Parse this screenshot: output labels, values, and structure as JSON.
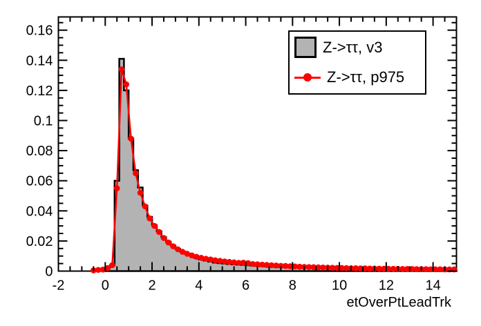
{
  "figure": {
    "background_color": "#ffffff",
    "axis_color": "#000000",
    "tick_label_color": "#000000"
  },
  "legend": {
    "position": "top-right",
    "border_color": "#000000",
    "background_color": "#ffffff",
    "entries": [
      {
        "label": "Z->ττ, v3",
        "swatch": "gray-filled-box",
        "fill": "#b3b3b3",
        "border": "#000000"
      },
      {
        "label": "Z->ττ, p975",
        "swatch": "red-line-circle-marker",
        "color": "#ff0000"
      }
    ]
  },
  "chart_data": {
    "type": "histogram",
    "title": "",
    "xlabel": "etOverPtLeadTrk",
    "ylabel": "",
    "xlim": [
      -2,
      15
    ],
    "ylim": [
      0,
      0.1688
    ],
    "grid": false,
    "x_major_ticks": [
      -2,
      0,
      2,
      4,
      6,
      8,
      10,
      12,
      14
    ],
    "x_tick_labels": [
      "-2",
      "0",
      "2",
      "4",
      "6",
      "8",
      "10",
      "12",
      "14"
    ],
    "x_minor_step": 0.5,
    "y_major_ticks": [
      0,
      0.02,
      0.04,
      0.06,
      0.08,
      0.1,
      0.12,
      0.14,
      0.16
    ],
    "y_tick_labels": [
      "0",
      "0.02",
      "0.04",
      "0.06",
      "0.08",
      "0.1",
      "0.12",
      "0.14",
      "0.16"
    ],
    "y_minor_step": 0.005,
    "bin_width": 0.2,
    "series": [
      {
        "name": "Z->ττ, v3",
        "style": "filled-step-histogram",
        "line_color": "#000000",
        "fill_color": "#b3b3b3",
        "bin_centers": [
          0.1,
          0.3,
          0.5,
          0.7,
          0.9,
          1.1,
          1.3,
          1.5,
          1.7,
          1.9,
          2.1,
          2.3,
          2.5,
          2.7,
          2.9,
          3.1,
          3.3,
          3.5,
          3.7,
          3.9,
          4.1,
          4.3,
          4.5,
          4.7,
          4.9,
          5.1,
          5.3,
          5.5,
          5.7,
          5.9,
          6.1,
          6.3,
          6.5,
          6.7,
          6.9,
          7.1,
          7.3,
          7.5,
          7.7,
          7.9,
          8.1,
          8.3,
          8.5,
          8.7,
          8.9,
          9.1,
          9.3,
          9.5,
          9.7,
          9.9,
          10.1,
          10.3,
          10.5,
          10.7,
          10.9,
          11.1,
          11.3,
          11.5,
          11.7,
          11.9,
          12.1,
          12.3,
          12.5,
          12.7,
          12.9,
          13.1,
          13.3,
          13.5,
          13.7,
          13.9,
          14.1,
          14.3,
          14.5,
          14.7,
          14.9
        ],
        "values": [
          0.002,
          0.004,
          0.06,
          0.141,
          0.12,
          0.088,
          0.067,
          0.0555,
          0.0435,
          0.036,
          0.0305,
          0.0265,
          0.0225,
          0.0195,
          0.017,
          0.0148,
          0.013,
          0.0116,
          0.0105,
          0.0088,
          0.0078,
          0.007,
          0.0063,
          0.0056,
          0.0053,
          0.005,
          0.0047,
          0.0045,
          0.0043,
          0.0041,
          0.0039,
          0.0037,
          0.0035,
          0.0033,
          0.0031,
          0.0029,
          0.0028,
          0.0027,
          0.0026,
          0.0025,
          0.0024,
          0.0023,
          0.0022,
          0.0021,
          0.002,
          0.002,
          0.0019,
          0.0018,
          0.0018,
          0.0017,
          0.0016,
          0.0016,
          0.0015,
          0.0015,
          0.0014,
          0.0014,
          0.0013,
          0.0013,
          0.0012,
          0.0012,
          0.0012,
          0.0011,
          0.0011,
          0.0011,
          0.001,
          0.001,
          0.001,
          0.0009,
          0.0009,
          0.0009,
          0.0008,
          0.0008,
          0.0008,
          0.0008,
          0.0007
        ]
      },
      {
        "name": "Z->ττ, p975",
        "style": "line-with-circle-markers",
        "color": "#ff0000",
        "marker": "filled-circle",
        "bin_centers": [
          -0.5,
          -0.3,
          -0.1,
          0.1,
          0.3,
          0.5,
          0.7,
          0.9,
          1.1,
          1.3,
          1.5,
          1.7,
          1.9,
          2.1,
          2.3,
          2.5,
          2.7,
          2.9,
          3.1,
          3.3,
          3.5,
          3.7,
          3.9,
          4.1,
          4.3,
          4.5,
          4.7,
          4.9,
          5.1,
          5.3,
          5.5,
          5.7,
          5.9,
          6.1,
          6.3,
          6.5,
          6.7,
          6.9,
          7.1,
          7.3,
          7.5,
          7.7,
          7.9,
          8.1,
          8.3,
          8.5,
          8.7,
          8.9,
          9.1,
          9.3,
          9.5,
          9.7,
          9.9,
          10.1,
          10.3,
          10.5,
          10.7,
          10.9,
          11.1,
          11.3,
          11.5,
          11.7,
          11.9,
          12.1,
          12.3,
          12.5,
          12.7,
          12.9,
          13.1,
          13.3,
          13.5,
          13.7,
          13.9,
          14.1,
          14.3,
          14.5,
          14.7,
          14.9
        ],
        "values": [
          0.0005,
          0.0008,
          0.001,
          0.002,
          0.004,
          0.055,
          0.134,
          0.124,
          0.088,
          0.065,
          0.052,
          0.043,
          0.035,
          0.03,
          0.026,
          0.022,
          0.019,
          0.0165,
          0.0145,
          0.0128,
          0.0115,
          0.0104,
          0.0095,
          0.0088,
          0.0082,
          0.0077,
          0.0072,
          0.0068,
          0.0064,
          0.0061,
          0.0058,
          0.0055,
          0.0056,
          0.0053,
          0.0047,
          0.0045,
          0.0043,
          0.0041,
          0.0039,
          0.0037,
          0.0035,
          0.0034,
          0.0032,
          0.0031,
          0.0029,
          0.0028,
          0.0027,
          0.0026,
          0.0025,
          0.0024,
          0.0023,
          0.0022,
          0.0021,
          0.0021,
          0.002,
          0.0019,
          0.0019,
          0.0018,
          0.0018,
          0.0017,
          0.0017,
          0.0016,
          0.0016,
          0.0015,
          0.0015,
          0.0015,
          0.0014,
          0.0014,
          0.0014,
          0.0013,
          0.0013,
          0.0013,
          0.0012,
          0.0012,
          0.0012,
          0.0011,
          0.0011,
          0.0011
        ]
      }
    ]
  }
}
